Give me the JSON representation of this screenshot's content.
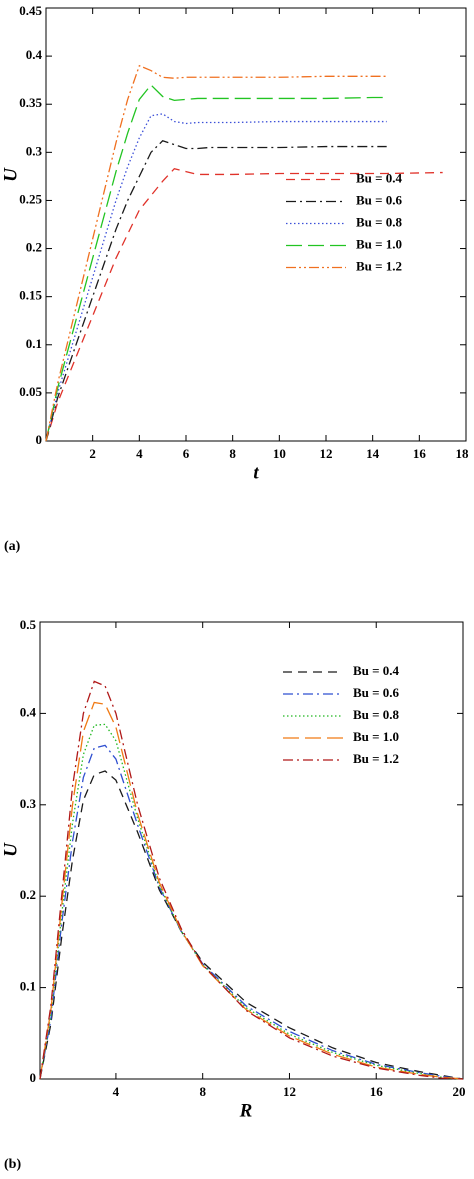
{
  "chart_data": [
    {
      "type": "line",
      "label": "(a)",
      "xlabel": "t",
      "ylabel": "U",
      "x": [
        0,
        0.5,
        1,
        1.5,
        2,
        2.5,
        3,
        3.5,
        4,
        4.5,
        5,
        5.5,
        6,
        6.5,
        7,
        8,
        10,
        12,
        14,
        14.6,
        17
      ],
      "xlim": [
        0,
        18
      ],
      "ylim": [
        0,
        0.45
      ],
      "xticks": [
        2,
        4,
        6,
        8,
        10,
        12,
        14,
        16,
        18
      ],
      "yticks": [
        0,
        0.05,
        0.1,
        0.15,
        0.2,
        0.25,
        0.3,
        0.35,
        0.4,
        0.45
      ],
      "grid": false,
      "legend": "center right",
      "series": [
        {
          "name": "Bu = 0.4",
          "color": "#e0322a",
          "dash": "dashed",
          "values": [
            0,
            0.04,
            0.07,
            0.1,
            0.13,
            0.16,
            0.19,
            0.215,
            0.24,
            0.255,
            0.27,
            0.283,
            0.28,
            0.277,
            0.277,
            0.277,
            0.278,
            0.278,
            0.278,
            0.278,
            0.279
          ]
        },
        {
          "name": "Bu = 0.6",
          "color": "#1a1a1a",
          "dash": "dashdot",
          "values": [
            0,
            0.045,
            0.08,
            0.115,
            0.15,
            0.185,
            0.22,
            0.25,
            0.275,
            0.3,
            0.312,
            0.308,
            0.304,
            0.304,
            0.305,
            0.305,
            0.305,
            0.306,
            0.306,
            0.306,
            null
          ]
        },
        {
          "name": "Bu = 0.8",
          "color": "#3b4fd8",
          "dash": "dotted",
          "values": [
            0,
            0.05,
            0.09,
            0.13,
            0.17,
            0.21,
            0.25,
            0.285,
            0.315,
            0.338,
            0.34,
            0.332,
            0.33,
            0.331,
            0.331,
            0.331,
            0.332,
            0.332,
            0.332,
            0.332,
            null
          ]
        },
        {
          "name": "Bu = 1.0",
          "color": "#22c422",
          "dash": "longdash",
          "values": [
            0,
            0.055,
            0.1,
            0.145,
            0.19,
            0.235,
            0.28,
            0.32,
            0.355,
            0.37,
            0.358,
            0.354,
            0.355,
            0.356,
            0.356,
            0.356,
            0.356,
            0.356,
            0.357,
            0.357,
            null
          ]
        },
        {
          "name": "Bu = 1.2",
          "color": "#f07020",
          "dash": "dashdotdot",
          "values": [
            0,
            0.06,
            0.11,
            0.16,
            0.21,
            0.26,
            0.31,
            0.355,
            0.39,
            0.385,
            0.378,
            0.377,
            0.378,
            0.378,
            0.378,
            0.378,
            0.378,
            0.379,
            0.379,
            0.379,
            null
          ]
        }
      ]
    },
    {
      "type": "line",
      "label": "(b)",
      "xlabel": "R",
      "ylabel": "U",
      "x": [
        0.5,
        1,
        1.5,
        2,
        2.5,
        3,
        3.5,
        4,
        5,
        6,
        7,
        8,
        10,
        12,
        14,
        16,
        18,
        19,
        20
      ],
      "xlim": [
        0.5,
        20
      ],
      "ylim": [
        0,
        0.5
      ],
      "xticks": [
        4,
        8,
        12,
        16,
        20
      ],
      "yticks": [
        0,
        0.1,
        0.2,
        0.3,
        0.4,
        0.5
      ],
      "grid": false,
      "legend": "upper right",
      "series": [
        {
          "name": "Bu = 0.4",
          "color": "#1a1a1a",
          "dash": "dashed",
          "values": [
            0,
            0.06,
            0.155,
            0.24,
            0.305,
            0.333,
            0.337,
            0.327,
            0.27,
            0.207,
            0.162,
            0.128,
            0.084,
            0.056,
            0.034,
            0.018,
            0.008,
            0.004,
            0
          ]
        },
        {
          "name": "Bu = 0.6",
          "color": "#2f4fd0",
          "dash": "dashdot",
          "values": [
            0,
            0.065,
            0.17,
            0.26,
            0.33,
            0.362,
            0.365,
            0.35,
            0.278,
            0.21,
            0.162,
            0.126,
            0.08,
            0.052,
            0.031,
            0.016,
            0.007,
            0.003,
            0
          ]
        },
        {
          "name": "Bu = 0.8",
          "color": "#22b822",
          "dash": "dotted",
          "values": [
            0,
            0.07,
            0.18,
            0.28,
            0.355,
            0.387,
            0.388,
            0.37,
            0.285,
            0.212,
            0.162,
            0.125,
            0.078,
            0.049,
            0.029,
            0.015,
            0.006,
            0.002,
            0
          ]
        },
        {
          "name": "Bu = 1.0",
          "color": "#f07a14",
          "dash": "longdash",
          "values": [
            0,
            0.075,
            0.19,
            0.3,
            0.38,
            0.412,
            0.41,
            0.385,
            0.29,
            0.215,
            0.163,
            0.124,
            0.076,
            0.047,
            0.027,
            0.013,
            0.005,
            0.002,
            0
          ]
        },
        {
          "name": "Bu = 1.2",
          "color": "#b01818",
          "dash": "dashdot",
          "values": [
            0,
            0.08,
            0.2,
            0.32,
            0.4,
            0.435,
            0.43,
            0.4,
            0.3,
            0.22,
            0.165,
            0.125,
            0.075,
            0.045,
            0.025,
            0.012,
            0.004,
            0.001,
            0
          ]
        }
      ]
    }
  ]
}
